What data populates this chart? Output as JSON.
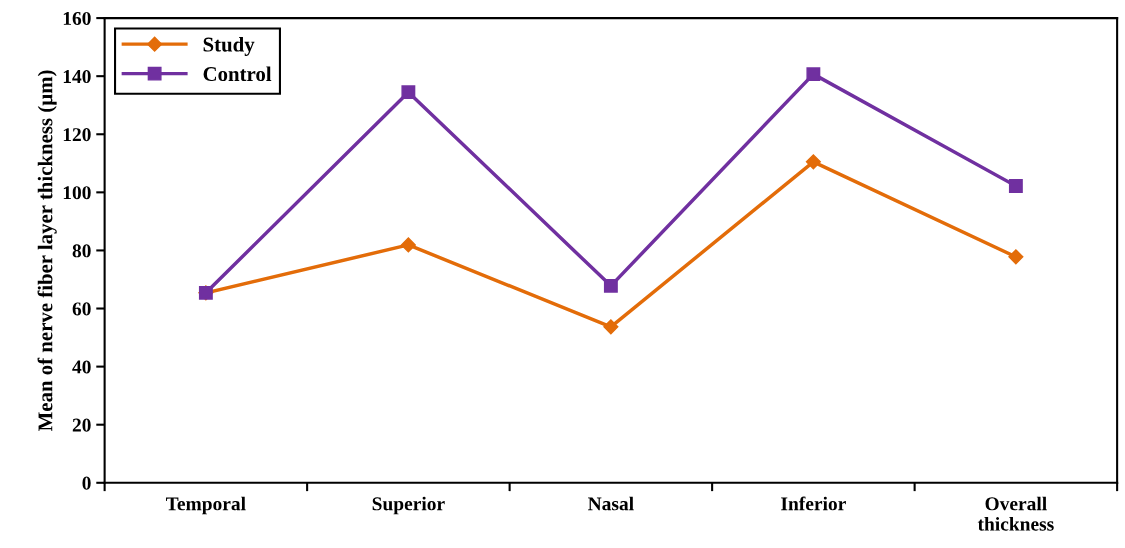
{
  "chart_data": {
    "type": "line",
    "ylabel": "Mean of nerve fiber layer thickness (µm)",
    "categories": [
      "Temporal",
      "Superior",
      "Nasal",
      "Inferior",
      "Overall\nthickness"
    ],
    "series": [
      {
        "name": "Study",
        "color": "#e36c09",
        "values": [
          65.4,
          81.9,
          53.7,
          110.5,
          77.8
        ],
        "marker": "diamond"
      },
      {
        "name": "Control",
        "color": "#7030a0",
        "values": [
          65.4,
          134.5,
          67.8,
          140.7,
          102.2
        ],
        "marker": "square"
      }
    ],
    "ylim": [
      0,
      160
    ],
    "yticks": [
      0,
      20,
      40,
      60,
      80,
      100,
      120,
      140,
      160
    ],
    "grid": false,
    "legend": "top left",
    "line_style": "solid"
  }
}
